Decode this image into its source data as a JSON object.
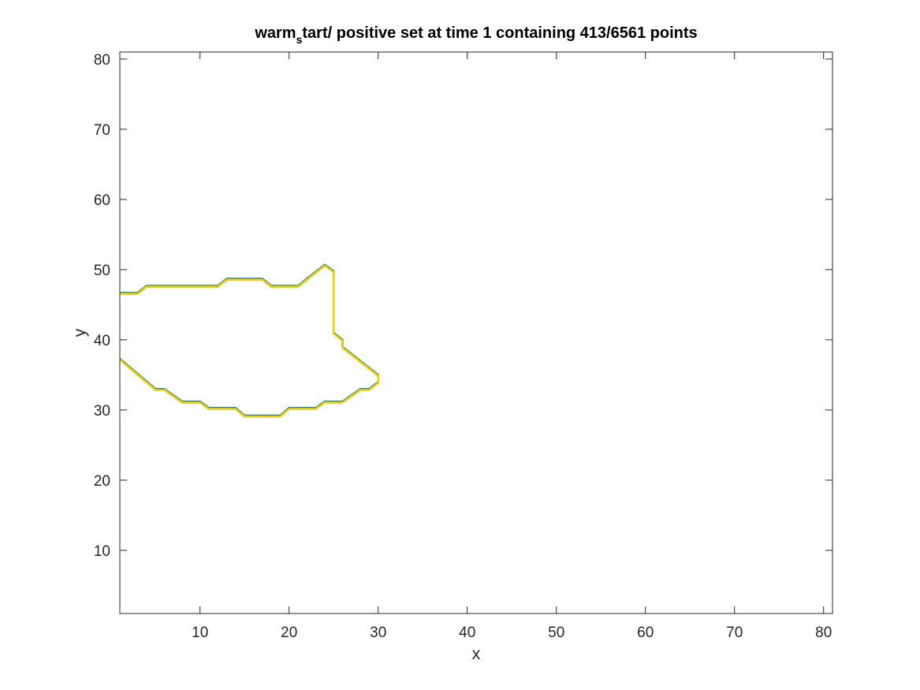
{
  "chart_data": {
    "type": "line",
    "title_main": "warm",
    "title_sub": "s",
    "title_rest": "tart/ positive set at time 1 containing 413/6561 points",
    "xlabel": "x",
    "ylabel": "y",
    "xlim": [
      1,
      81
    ],
    "ylim": [
      1,
      81
    ],
    "xticks": [
      10,
      20,
      30,
      40,
      50,
      60,
      70,
      80
    ],
    "yticks": [
      10,
      20,
      30,
      40,
      50,
      60,
      70,
      80
    ],
    "grid": false,
    "contour_levels": [
      {
        "color": "#3b3bd6",
        "offset": 0.0
      },
      {
        "color": "#2f7fe0",
        "offset": 0.25
      },
      {
        "color": "#1fb6b0",
        "offset": 0.5
      },
      {
        "color": "#8cc63e",
        "offset": 0.75
      },
      {
        "color": "#f2d300",
        "offset": 1.0
      }
    ],
    "outline": [
      {
        "x": 1,
        "y": 46.7
      },
      {
        "x": 3,
        "y": 46.7
      },
      {
        "x": 4,
        "y": 47.7
      },
      {
        "x": 12,
        "y": 47.7
      },
      {
        "x": 13,
        "y": 48.7
      },
      {
        "x": 17,
        "y": 48.7
      },
      {
        "x": 18,
        "y": 47.7
      },
      {
        "x": 21,
        "y": 47.7
      },
      {
        "x": 24,
        "y": 50.7
      },
      {
        "x": 25,
        "y": 49.8
      },
      {
        "x": 25,
        "y": 41
      },
      {
        "x": 26,
        "y": 40
      },
      {
        "x": 26,
        "y": 39
      },
      {
        "x": 30,
        "y": 35
      },
      {
        "x": 30,
        "y": 34
      },
      {
        "x": 29,
        "y": 33
      },
      {
        "x": 28,
        "y": 33
      },
      {
        "x": 26,
        "y": 31.2
      },
      {
        "x": 24,
        "y": 31.2
      },
      {
        "x": 23,
        "y": 30.3
      },
      {
        "x": 20,
        "y": 30.3
      },
      {
        "x": 19,
        "y": 29.2
      },
      {
        "x": 15,
        "y": 29.2
      },
      {
        "x": 14,
        "y": 30.3
      },
      {
        "x": 11,
        "y": 30.3
      },
      {
        "x": 10,
        "y": 31.2
      },
      {
        "x": 8,
        "y": 31.2
      },
      {
        "x": 6,
        "y": 33
      },
      {
        "x": 5,
        "y": 33
      },
      {
        "x": 1,
        "y": 37.3
      }
    ]
  }
}
